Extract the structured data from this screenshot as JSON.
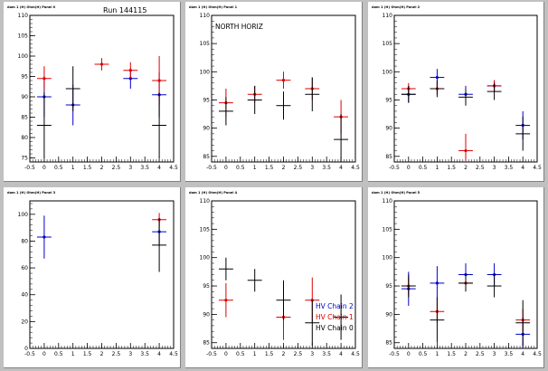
{
  "colors": {
    "background": "#c0c0c0",
    "pad": "#ffffff",
    "frame": "#000000",
    "hv_chain_2": "#0000cc",
    "hv_chain_1": "#dd0000",
    "hv_chain_0": "#000000"
  },
  "chart_data": [
    {
      "type": "scatter",
      "title": "Run 144115",
      "pad_label": "dom 1 (H) Ohm(H) Panel 0",
      "xlim": [
        -0.5,
        4.5
      ],
      "ylim": [
        74,
        110
      ],
      "xticks": [
        "-0.5",
        "0",
        "0.5",
        "1",
        "1.5",
        "2",
        "2.5",
        "3",
        "3.5",
        "4",
        "4.5"
      ],
      "yticks": [
        "75",
        "80",
        "85",
        "90",
        "95",
        "100",
        "105",
        "110"
      ],
      "series": [
        {
          "color": "blue",
          "points": [
            {
              "x": 0,
              "y": 90,
              "ex": 0.25,
              "ey": 5
            },
            {
              "x": 1,
              "y": 88,
              "ex": 0.25,
              "ey": 5
            },
            {
              "x": 3,
              "y": 94.5,
              "ex": 0.25,
              "ey": 2.5
            },
            {
              "x": 4,
              "y": 90.5,
              "ex": 0.25,
              "ey": 5.5
            }
          ]
        },
        {
          "color": "red",
          "points": [
            {
              "x": 0,
              "y": 94.5,
              "ex": 0.25,
              "ey": 3
            },
            {
              "x": 2,
              "y": 98,
              "ex": 0.25,
              "ey": 1.5
            },
            {
              "x": 3,
              "y": 96.5,
              "ex": 0.25,
              "ey": 2
            },
            {
              "x": 4,
              "y": 94,
              "ex": 0.25,
              "ey": 6
            }
          ]
        },
        {
          "color": "black",
          "points": [
            {
              "x": 0,
              "y": 83,
              "ex": 0.25,
              "ey": 8
            },
            {
              "x": 1,
              "y": 92,
              "ex": 0.25,
              "ey": 5.5
            },
            {
              "x": 4,
              "y": 83,
              "ex": 0.25,
              "ey": 8
            }
          ]
        }
      ]
    },
    {
      "type": "scatter",
      "title": "NORTH HORIZ",
      "pad_label": "dom 1 (H) Ohm(H) Panel 1",
      "xlim": [
        -0.5,
        4.5
      ],
      "ylim": [
        84,
        110
      ],
      "xticks": [
        "-0.5",
        "0",
        "0.5",
        "1",
        "1.5",
        "2",
        "2.5",
        "3",
        "3.5",
        "4",
        "4.5"
      ],
      "yticks": [
        "85",
        "90",
        "95",
        "100",
        "105",
        "110"
      ],
      "series": [
        {
          "color": "red",
          "points": [
            {
              "x": 0,
              "y": 94.5,
              "ex": 0.25,
              "ey": 2.5
            },
            {
              "x": 1,
              "y": 96,
              "ex": 0.25,
              "ey": 1.5
            },
            {
              "x": 2,
              "y": 98.5,
              "ex": 0.25,
              "ey": 1.5
            },
            {
              "x": 3,
              "y": 97,
              "ex": 0.25,
              "ey": 2
            },
            {
              "x": 4,
              "y": 92,
              "ex": 0.25,
              "ey": 3
            }
          ]
        },
        {
          "color": "black",
          "points": [
            {
              "x": 0,
              "y": 93,
              "ex": 0.25,
              "ey": 2.5
            },
            {
              "x": 1,
              "y": 95,
              "ex": 0.25,
              "ey": 2.5
            },
            {
              "x": 2,
              "y": 94,
              "ex": 0.25,
              "ey": 2.5
            },
            {
              "x": 3,
              "y": 96,
              "ex": 0.25,
              "ey": 3
            },
            {
              "x": 4,
              "y": 88,
              "ex": 0.25,
              "ey": 4.5
            }
          ]
        }
      ]
    },
    {
      "type": "scatter",
      "title": "",
      "pad_label": "dom 1 (H) Ohm(H) Panel 2",
      "xlim": [
        -0.5,
        4.5
      ],
      "ylim": [
        84,
        110
      ],
      "xticks": [
        "-0.5",
        "0",
        "0.5",
        "1",
        "1.5",
        "2",
        "2.5",
        "3",
        "3.5",
        "4",
        "4.5"
      ],
      "yticks": [
        "85",
        "90",
        "95",
        "100",
        "105",
        "110"
      ],
      "series": [
        {
          "color": "blue",
          "points": [
            {
              "x": 0,
              "y": 96,
              "ex": 0.25,
              "ey": 1.5
            },
            {
              "x": 1,
              "y": 99,
              "ex": 0.25,
              "ey": 1.5
            },
            {
              "x": 2,
              "y": 96,
              "ex": 0.25,
              "ey": 1.5
            },
            {
              "x": 3,
              "y": 97.5,
              "ex": 0.25,
              "ey": 1
            },
            {
              "x": 4,
              "y": 90.5,
              "ex": 0.25,
              "ey": 2.5
            }
          ]
        },
        {
          "color": "red",
          "points": [
            {
              "x": 0,
              "y": 97,
              "ex": 0.25,
              "ey": 1
            },
            {
              "x": 1,
              "y": 97,
              "ex": 0.25,
              "ey": 1
            },
            {
              "x": 2,
              "y": 86,
              "ex": 0.25,
              "ey": 3
            },
            {
              "x": 3,
              "y": 97.5,
              "ex": 0.25,
              "ey": 1
            }
          ]
        },
        {
          "color": "black",
          "points": [
            {
              "x": 0,
              "y": 96,
              "ex": 0.25,
              "ey": 1.5
            },
            {
              "x": 1,
              "y": 97,
              "ex": 0.25,
              "ey": 1.5
            },
            {
              "x": 2,
              "y": 95.5,
              "ex": 0.25,
              "ey": 1.5
            },
            {
              "x": 3,
              "y": 96.5,
              "ex": 0.25,
              "ey": 1.5
            },
            {
              "x": 4,
              "y": 89,
              "ex": 0.25,
              "ey": 3
            }
          ]
        }
      ]
    },
    {
      "type": "scatter",
      "title": "",
      "pad_label": "dom 1 (H) Ohm(H) Panel 3",
      "xlim": [
        -0.5,
        4.5
      ],
      "ylim": [
        0,
        110
      ],
      "xticks": [
        "-0.5",
        "0",
        "0.5",
        "1",
        "1.5",
        "2",
        "2.5",
        "3",
        "3.5",
        "4",
        "4.5"
      ],
      "yticks": [
        "0",
        "20",
        "40",
        "60",
        "80",
        "100"
      ],
      "series": [
        {
          "color": "blue",
          "points": [
            {
              "x": 0,
              "y": 83,
              "ex": 0.25,
              "ey": 16
            },
            {
              "x": 4,
              "y": 87,
              "ex": 0.25,
              "ey": 10
            }
          ]
        },
        {
          "color": "red",
          "points": [
            {
              "x": 4,
              "y": 96,
              "ex": 0.25,
              "ey": 5
            }
          ]
        },
        {
          "color": "black",
          "points": [
            {
              "x": 4,
              "y": 77,
              "ex": 0.25,
              "ey": 20
            }
          ]
        }
      ]
    },
    {
      "type": "scatter",
      "title": "",
      "pad_label": "dom 1 (H) Ohm(H) Panel 4",
      "xlim": [
        -0.5,
        4.5
      ],
      "ylim": [
        84,
        110
      ],
      "xticks": [
        "-0.5",
        "0",
        "0.5",
        "1",
        "1.5",
        "2",
        "2.5",
        "3",
        "3.5",
        "4",
        "4.5"
      ],
      "yticks": [
        "85",
        "90",
        "95",
        "100",
        "105",
        "110"
      ],
      "legend": [
        {
          "label": "HV Chain 2",
          "color": "blue"
        },
        {
          "label": "HV Chain 1",
          "color": "red"
        },
        {
          "label": "HV Chain 0",
          "color": "black"
        }
      ],
      "series": [
        {
          "color": "red",
          "points": [
            {
              "x": 0,
              "y": 92.5,
              "ex": 0.25,
              "ey": 3
            },
            {
              "x": 2,
              "y": 89.5,
              "ex": 0.25,
              "ey": 4
            },
            {
              "x": 3,
              "y": 92.5,
              "ex": 0.25,
              "ey": 4
            }
          ]
        },
        {
          "color": "black",
          "points": [
            {
              "x": 0,
              "y": 98,
              "ex": 0.25,
              "ey": 2
            },
            {
              "x": 1,
              "y": 96,
              "ex": 0.25,
              "ey": 2
            },
            {
              "x": 2,
              "y": 92.5,
              "ex": 0.25,
              "ey": 3.5
            },
            {
              "x": 3,
              "y": 88.5,
              "ex": 0.25,
              "ey": 4
            },
            {
              "x": 4,
              "y": 89.5,
              "ex": 0.25,
              "ey": 4
            }
          ]
        }
      ]
    },
    {
      "type": "scatter",
      "title": "",
      "pad_label": "dom 1 (H) Ohm(H) Panel 5",
      "xlim": [
        -0.5,
        4.5
      ],
      "ylim": [
        84,
        110
      ],
      "xticks": [
        "-0.5",
        "0",
        "0.5",
        "1",
        "1.5",
        "2",
        "2.5",
        "3",
        "3.5",
        "4",
        "4.5"
      ],
      "yticks": [
        "85",
        "90",
        "95",
        "100",
        "105",
        "110"
      ],
      "series": [
        {
          "color": "blue",
          "points": [
            {
              "x": 0,
              "y": 94.5,
              "ex": 0.25,
              "ey": 3
            },
            {
              "x": 1,
              "y": 95.5,
              "ex": 0.25,
              "ey": 3
            },
            {
              "x": 2,
              "y": 97,
              "ex": 0.25,
              "ey": 2
            },
            {
              "x": 3,
              "y": 97,
              "ex": 0.25,
              "ey": 2
            },
            {
              "x": 4,
              "y": 86.5,
              "ex": 0.25,
              "ey": 3
            }
          ]
        },
        {
          "color": "red",
          "points": [
            {
              "x": 0,
              "y": 95,
              "ex": 0.25,
              "ey": 1.5
            },
            {
              "x": 1,
              "y": 90.5,
              "ex": 0.25,
              "ey": 2
            },
            {
              "x": 2,
              "y": 95.5,
              "ex": 0.25,
              "ey": 1
            },
            {
              "x": 4,
              "y": 89,
              "ex": 0.25,
              "ey": 2
            }
          ]
        },
        {
          "color": "black",
          "points": [
            {
              "x": 0,
              "y": 95,
              "ex": 0.25,
              "ey": 2
            },
            {
              "x": 1,
              "y": 89,
              "ex": 0.25,
              "ey": 4
            },
            {
              "x": 2,
              "y": 95.5,
              "ex": 0.25,
              "ey": 1.5
            },
            {
              "x": 3,
              "y": 95,
              "ex": 0.25,
              "ey": 2
            },
            {
              "x": 4,
              "y": 88.5,
              "ex": 0.25,
              "ey": 4
            }
          ]
        }
      ]
    }
  ]
}
